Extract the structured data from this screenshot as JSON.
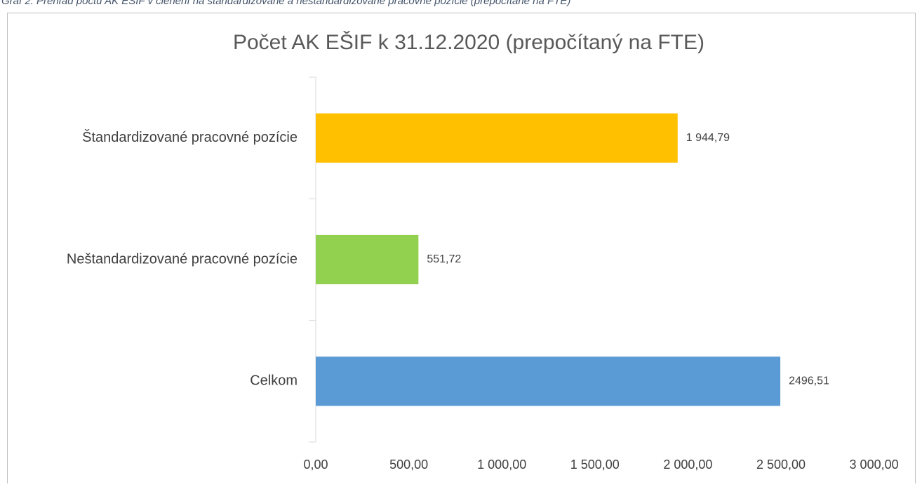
{
  "caption": "Graf 2: Prehľad počtu AK EŠIF v členení na štandardizované a neštandardizované pracovné pozície (prepočítané na FTE)",
  "chart_data": {
    "type": "bar",
    "orientation": "horizontal",
    "title": "Počet AK EŠIF k 31.12.2020 (prepočítaný na FTE)",
    "categories": [
      "Štandardizované pracovné pozície",
      "Neštandardizované pracovné pozície",
      "Celkom"
    ],
    "values": [
      1944.79,
      551.72,
      2496.51
    ],
    "value_labels": [
      "1 944,79",
      "551,72",
      "2496,51"
    ],
    "colors": [
      "#FFC000",
      "#92D050",
      "#5B9BD5"
    ],
    "xlim": [
      0,
      3000
    ],
    "xticks": [
      {
        "value": 0,
        "label": "0,00"
      },
      {
        "value": 500,
        "label": "500,00"
      },
      {
        "value": 1000,
        "label": "1 000,00"
      },
      {
        "value": 1500,
        "label": "1 500,00"
      },
      {
        "value": 2000,
        "label": "2 000,00"
      },
      {
        "value": 2500,
        "label": "2 500,00"
      },
      {
        "value": 3000,
        "label": "3 000,00"
      }
    ],
    "grid": false
  }
}
